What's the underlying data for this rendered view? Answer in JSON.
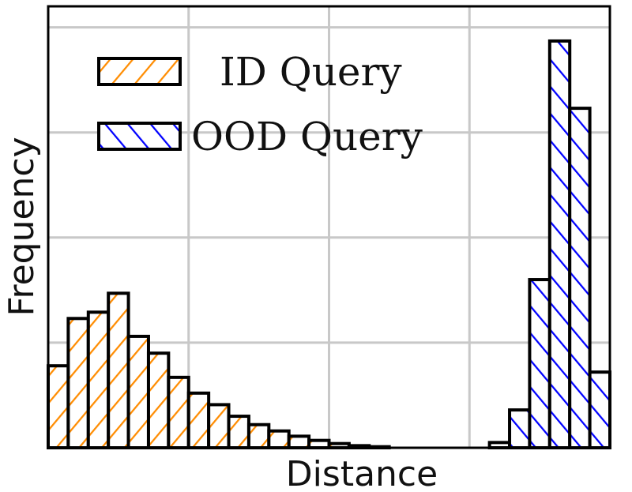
{
  "chart_data": {
    "type": "bar",
    "title": "",
    "xlabel": "Distance",
    "ylabel": "Frequency",
    "ylim": [
      0,
      4.2
    ],
    "grid": true,
    "legend_position": "top-left",
    "x_bins": 28,
    "series": [
      {
        "name": "ID Query",
        "color": "#ff8c00",
        "hatch": "forward-slash",
        "values": [
          0.78,
          1.23,
          1.29,
          1.47,
          1.06,
          0.9,
          0.67,
          0.52,
          0.41,
          0.3,
          0.22,
          0.16,
          0.11,
          0.07,
          0.04,
          0.02,
          0.01,
          0,
          0,
          0,
          0,
          0,
          0,
          0,
          0,
          0,
          0,
          0
        ]
      },
      {
        "name": "OOD Query",
        "color": "#0000ff",
        "hatch": "back-slash",
        "values": [
          0,
          0,
          0,
          0,
          0,
          0,
          0,
          0,
          0,
          0,
          0,
          0,
          0,
          0,
          0,
          0,
          0,
          0,
          0,
          0,
          0,
          0,
          0.05,
          0.36,
          1.6,
          3.87,
          3.23,
          0.72
        ]
      }
    ]
  }
}
